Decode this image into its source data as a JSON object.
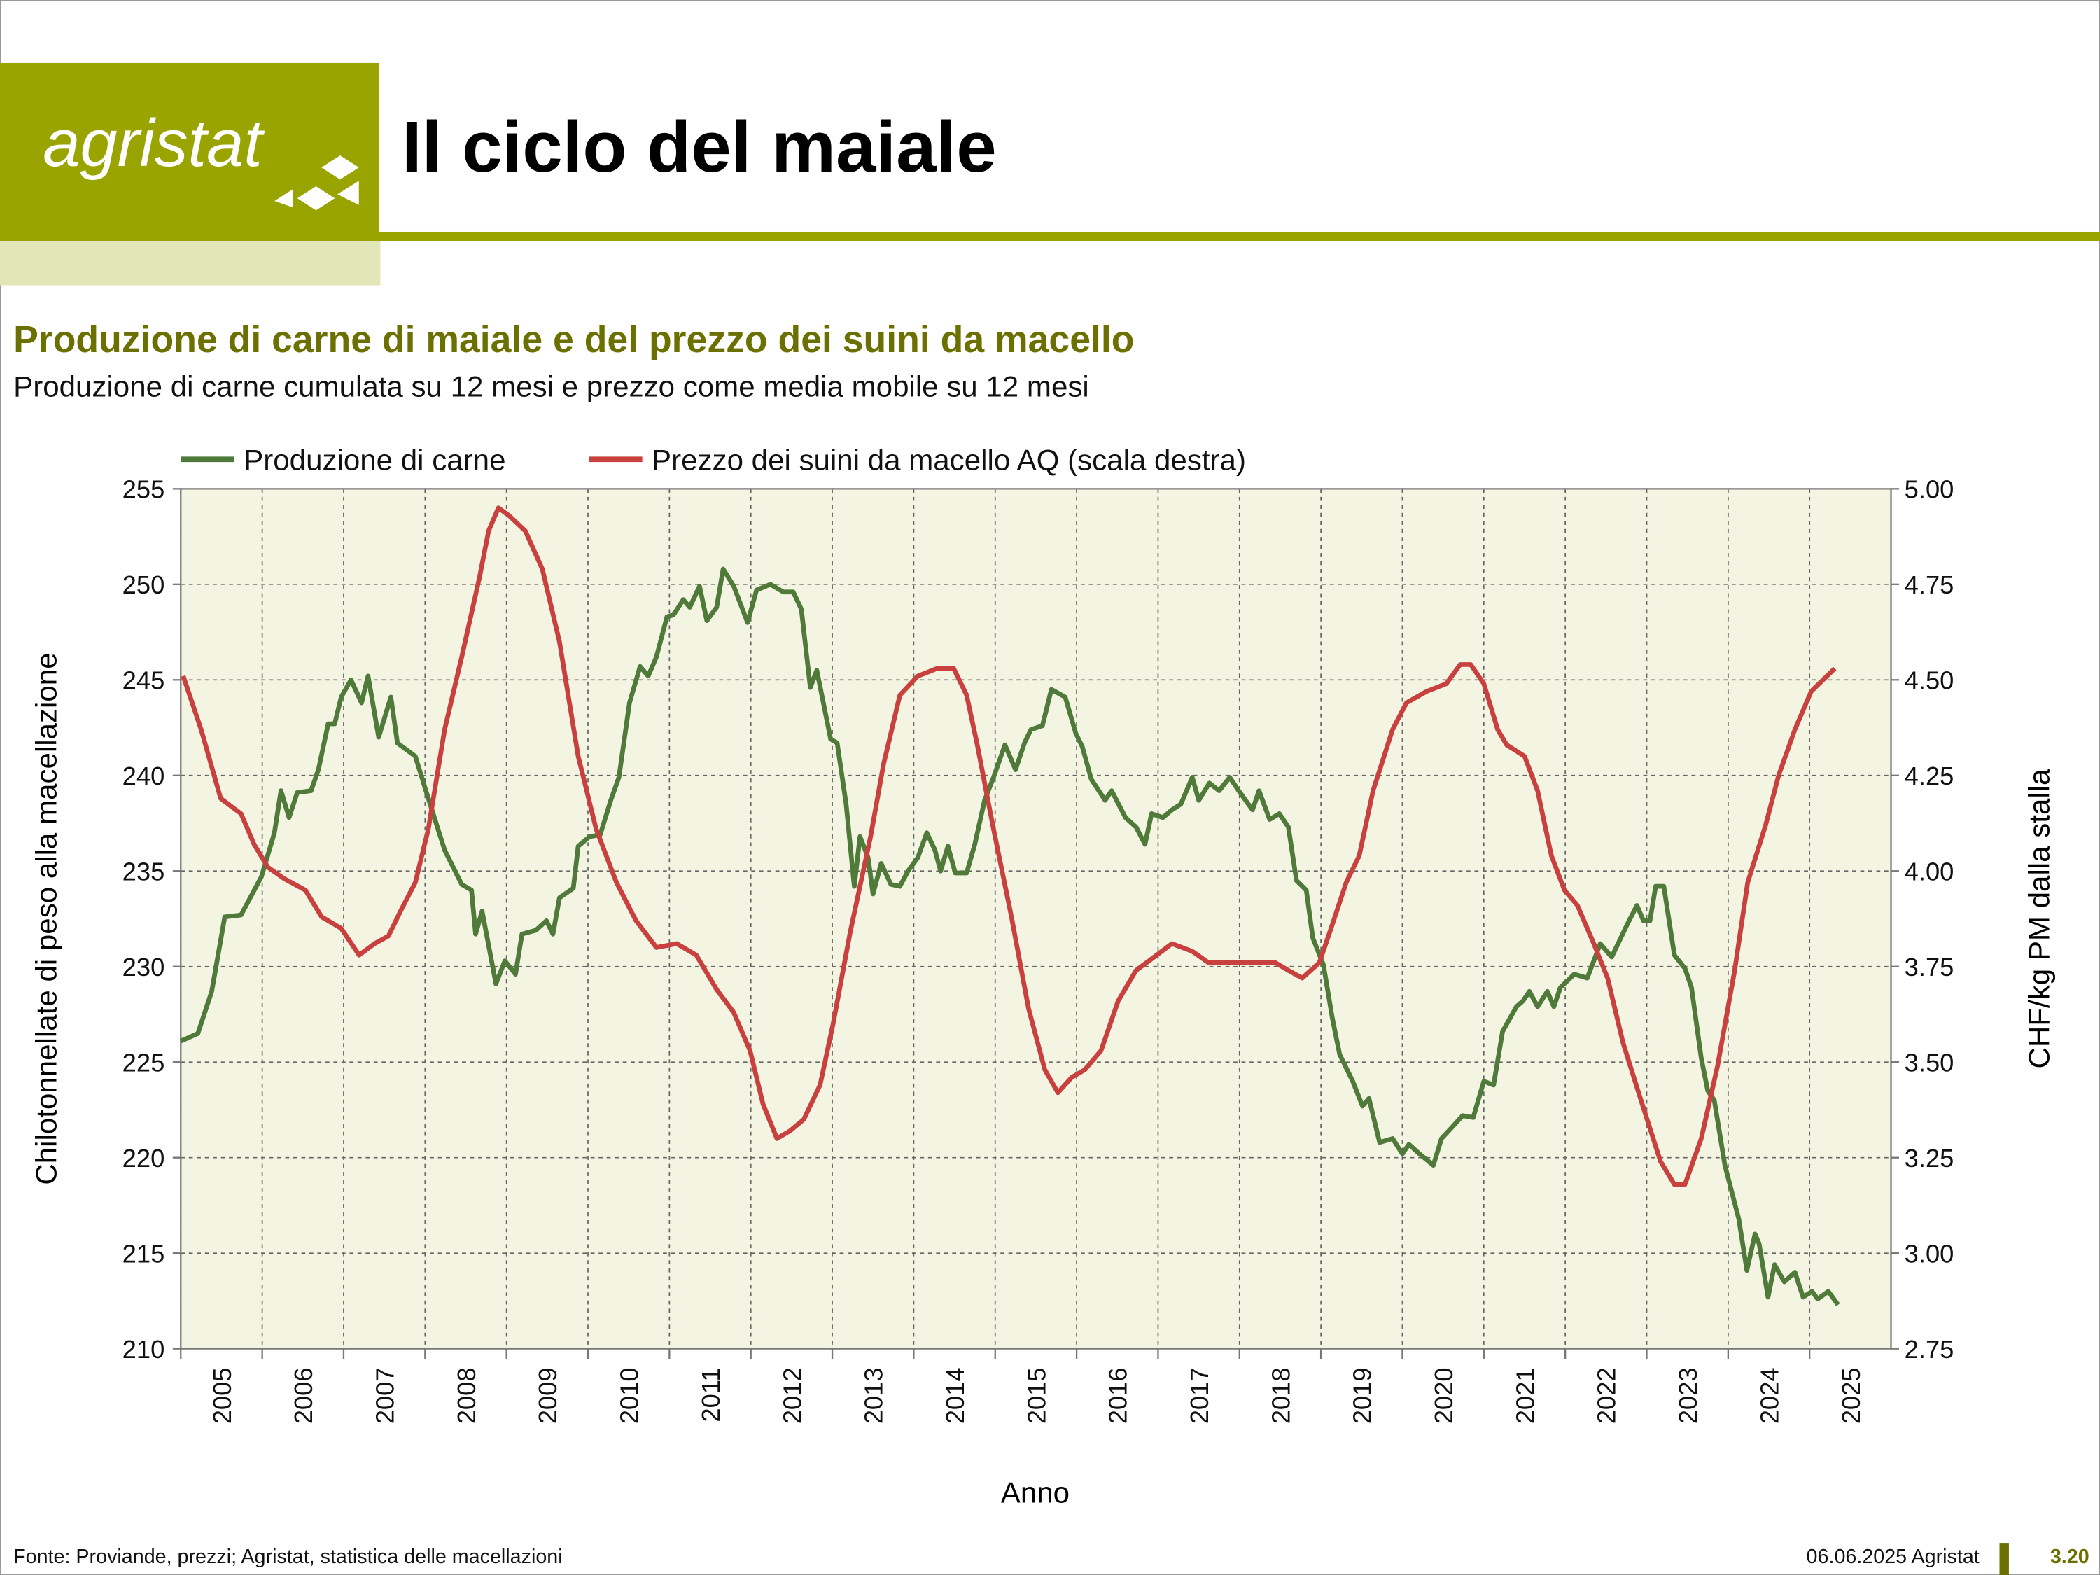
{
  "header": {
    "logo": "agristat",
    "title": "Il ciclo del maiale"
  },
  "chart_data": {
    "type": "line",
    "title": "Produzione di carne di maiale e del prezzo dei suini da macello",
    "subtitle": "Produzione di carne cumulata su 12 mesi e prezzo come media mobile su 12 mesi",
    "xlabel": "Anno",
    "ylabel": "Chilotonnellate di peso alla macellazione",
    "y2label": "CHF/kg PM dalla stalla",
    "xlim": [
      2005,
      2026
    ],
    "xticks": [
      2005,
      2006,
      2007,
      2008,
      2009,
      2010,
      2011,
      2012,
      2013,
      2014,
      2015,
      2016,
      2017,
      2018,
      2019,
      2020,
      2021,
      2022,
      2023,
      2024,
      2025
    ],
    "ylim": [
      210,
      255
    ],
    "yticks": [
      210,
      215,
      220,
      225,
      230,
      235,
      240,
      245,
      250,
      255
    ],
    "y2lim": [
      2.75,
      5
    ],
    "y2ticks": [
      2.75,
      {
        "value": 3,
        "label": "3.00"
      },
      3.25,
      {
        "value": 3.5,
        "label": "3.50"
      },
      3.75,
      {
        "value": 4,
        "label": "4.00"
      },
      4.25,
      {
        "value": 4.5,
        "label": "4.50"
      },
      4.75,
      {
        "value": 5,
        "label": "5.00"
      }
    ],
    "grid": true,
    "legend": "top",
    "series": [
      {
        "name": "Produzione di carne",
        "color": "#4f7a3a",
        "x": [
          2005.0,
          2005.21,
          2005.38,
          2005.54,
          2005.74,
          2005.99,
          2006.15,
          2006.23,
          2006.33,
          2006.43,
          2006.6,
          2006.69,
          2006.81,
          2006.89,
          2006.97,
          2007.09,
          2007.22,
          2007.3,
          2007.43,
          2007.58,
          2007.66,
          2007.88,
          2008.01,
          2008.24,
          2008.45,
          2008.57,
          2008.62,
          2008.7,
          2008.87,
          2008.98,
          2009.11,
          2009.19,
          2009.36,
          2009.49,
          2009.57,
          2009.65,
          2009.82,
          2009.88,
          2010.02,
          2010.15,
          2010.28,
          2010.38,
          2010.51,
          2010.64,
          2010.74,
          2010.84,
          2010.97,
          2011.05,
          2011.17,
          2011.25,
          2011.37,
          2011.46,
          2011.58,
          2011.66,
          2011.79,
          2011.96,
          2012.07,
          2012.24,
          2012.4,
          2012.52,
          2012.62,
          2012.73,
          2012.81,
          2012.98,
          2013.06,
          2013.17,
          2013.27,
          2013.34,
          2013.44,
          2013.5,
          2013.6,
          2013.72,
          2013.83,
          2013.93,
          2014.05,
          2014.16,
          2014.26,
          2014.33,
          2014.42,
          2014.51,
          2014.65,
          2014.75,
          2014.87,
          2014.98,
          2015.12,
          2015.25,
          2015.36,
          2015.44,
          2015.58,
          2015.69,
          2015.86,
          2015.99,
          2016.07,
          2016.18,
          2016.35,
          2016.43,
          2016.6,
          2016.73,
          2016.84,
          2016.92,
          2017.06,
          2017.17,
          2017.28,
          2017.42,
          2017.5,
          2017.63,
          2017.75,
          2017.88,
          2017.99,
          2018.16,
          2018.24,
          2018.37,
          2018.49,
          2018.6,
          2018.7,
          2018.82,
          2018.9,
          2019.03,
          2019.14,
          2019.23,
          2019.39,
          2019.51,
          2019.59,
          2019.72,
          2019.88,
          2020.0,
          2020.08,
          2020.21,
          2020.38,
          2020.48,
          2020.59,
          2020.74,
          2020.87,
          2021.0,
          2021.12,
          2021.23,
          2021.4,
          2021.48,
          2021.56,
          2021.66,
          2021.78,
          2021.86,
          2021.94,
          2022.11,
          2022.27,
          2022.35,
          2022.43,
          2022.57,
          2022.76,
          2022.88,
          2022.96,
          2023.04,
          2023.11,
          2023.21,
          2023.34,
          2023.47,
          2023.55,
          2023.67,
          2023.75,
          2023.83,
          2023.96,
          2024.13,
          2024.23,
          2024.33,
          2024.38,
          2024.49,
          2024.57,
          2024.69,
          2024.82,
          2024.92,
          2025.03,
          2025.1,
          2025.23,
          2025.35
        ],
        "values": [
          226.1,
          226.5,
          228.7,
          232.6,
          232.7,
          234.7,
          237.0,
          239.2,
          237.8,
          239.1,
          239.2,
          240.3,
          242.7,
          242.7,
          244.1,
          245.0,
          243.8,
          245.2,
          242.0,
          244.1,
          241.7,
          241.0,
          239.2,
          236.1,
          234.3,
          234.0,
          231.7,
          232.9,
          229.1,
          230.3,
          229.6,
          231.7,
          231.9,
          232.4,
          231.7,
          233.6,
          234.1,
          236.3,
          236.8,
          236.9,
          238.7,
          239.9,
          243.8,
          245.7,
          245.2,
          246.2,
          248.3,
          248.4,
          249.2,
          248.8,
          249.9,
          248.1,
          248.8,
          250.8,
          249.9,
          248.0,
          249.7,
          250.0,
          249.6,
          249.6,
          248.7,
          244.6,
          245.5,
          241.9,
          241.7,
          238.5,
          234.2,
          236.8,
          235.7,
          233.8,
          235.4,
          234.3,
          234.2,
          235.0,
          235.7,
          237.0,
          236.1,
          235.0,
          236.3,
          234.9,
          234.9,
          236.4,
          238.7,
          239.9,
          241.6,
          240.3,
          241.7,
          242.4,
          242.6,
          244.5,
          244.1,
          242.2,
          241.5,
          239.8,
          238.7,
          239.2,
          237.8,
          237.3,
          236.4,
          238.0,
          237.8,
          238.2,
          238.5,
          239.9,
          238.7,
          239.6,
          239.2,
          239.9,
          239.2,
          238.2,
          239.2,
          237.7,
          238.0,
          237.3,
          234.5,
          234.0,
          231.5,
          230.1,
          227.3,
          225.4,
          224.0,
          222.7,
          223.1,
          220.8,
          221.0,
          220.2,
          220.7,
          220.2,
          219.6,
          221.0,
          221.5,
          222.2,
          222.1,
          224.0,
          223.8,
          226.6,
          227.9,
          228.2,
          228.7,
          227.9,
          228.7,
          227.9,
          228.9,
          229.6,
          229.4,
          230.3,
          231.2,
          230.5,
          232.2,
          233.2,
          232.4,
          232.4,
          234.2,
          234.2,
          230.6,
          229.9,
          228.9,
          225.2,
          223.5,
          223.0,
          219.6,
          216.8,
          214.1,
          216.0,
          215.5,
          212.7,
          214.4,
          213.5,
          214.0,
          212.7,
          213.0,
          212.6,
          213.0,
          212.3
        ]
      },
      {
        "name": "Prezzo dei suini da macello AQ (scala destra)",
        "color": "#c8413f",
        "axis": "y2",
        "x": [
          2005.03,
          2005.25,
          2005.49,
          2005.74,
          2005.9,
          2006.07,
          2006.27,
          2006.53,
          2006.73,
          2006.97,
          2007.19,
          2007.38,
          2007.55,
          2007.71,
          2007.88,
          2008.04,
          2008.24,
          2008.45,
          2008.67,
          2008.78,
          2008.9,
          2009.03,
          2009.23,
          2009.44,
          2009.65,
          2009.88,
          2010.1,
          2010.35,
          2010.59,
          2010.84,
          2011.09,
          2011.33,
          2011.58,
          2011.79,
          2011.99,
          2012.15,
          2012.32,
          2012.48,
          2012.65,
          2012.85,
          2013.01,
          2013.22,
          2013.47,
          2013.63,
          2013.83,
          2014.05,
          2014.29,
          2014.49,
          2014.65,
          2014.78,
          2014.97,
          2015.2,
          2015.41,
          2015.61,
          2015.77,
          2015.94,
          2016.1,
          2016.3,
          2016.51,
          2016.73,
          2016.92,
          2017.17,
          2017.42,
          2017.62,
          2017.91,
          2018.24,
          2018.44,
          2018.6,
          2018.77,
          2018.98,
          2019.14,
          2019.31,
          2019.47,
          2019.64,
          2019.88,
          2020.05,
          2020.3,
          2020.54,
          2020.71,
          2020.84,
          2021.0,
          2021.17,
          2021.28,
          2021.5,
          2021.66,
          2021.83,
          2021.99,
          2022.15,
          2022.35,
          2022.52,
          2022.71,
          2022.93,
          2023.17,
          2023.34,
          2023.47,
          2023.67,
          2023.87,
          2024.08,
          2024.24,
          2024.46,
          2024.62,
          2024.82,
          2025.02,
          2025.31
        ],
        "values": [
          4.51,
          4.37,
          4.19,
          4.15,
          4.07,
          4.01,
          3.98,
          3.95,
          3.88,
          3.85,
          3.78,
          3.81,
          3.83,
          3.9,
          3.97,
          4.11,
          4.37,
          4.56,
          4.77,
          4.89,
          4.95,
          4.93,
          4.89,
          4.79,
          4.6,
          4.3,
          4.11,
          3.97,
          3.87,
          3.8,
          3.81,
          3.78,
          3.69,
          3.63,
          3.53,
          3.39,
          3.3,
          3.32,
          3.35,
          3.44,
          3.6,
          3.84,
          4.09,
          4.28,
          4.46,
          4.51,
          4.53,
          4.53,
          4.46,
          4.33,
          4.12,
          3.88,
          3.64,
          3.48,
          3.42,
          3.46,
          3.48,
          3.53,
          3.66,
          3.74,
          3.77,
          3.81,
          3.79,
          3.76,
          3.76,
          3.76,
          3.76,
          3.74,
          3.72,
          3.76,
          3.86,
          3.97,
          4.04,
          4.21,
          4.37,
          4.44,
          4.47,
          4.49,
          4.54,
          4.54,
          4.49,
          4.37,
          4.33,
          4.3,
          4.21,
          4.04,
          3.95,
          3.91,
          3.81,
          3.72,
          3.55,
          3.4,
          3.24,
          3.18,
          3.18,
          3.3,
          3.49,
          3.74,
          3.97,
          4.12,
          4.25,
          4.37,
          4.47,
          4.53
        ]
      }
    ]
  },
  "footer": {
    "source": "Fonte: Proviande, prezzi; Agristat, statistica delle macellazioni",
    "date": "06.06.2025 Agristat",
    "page": "3.20"
  }
}
